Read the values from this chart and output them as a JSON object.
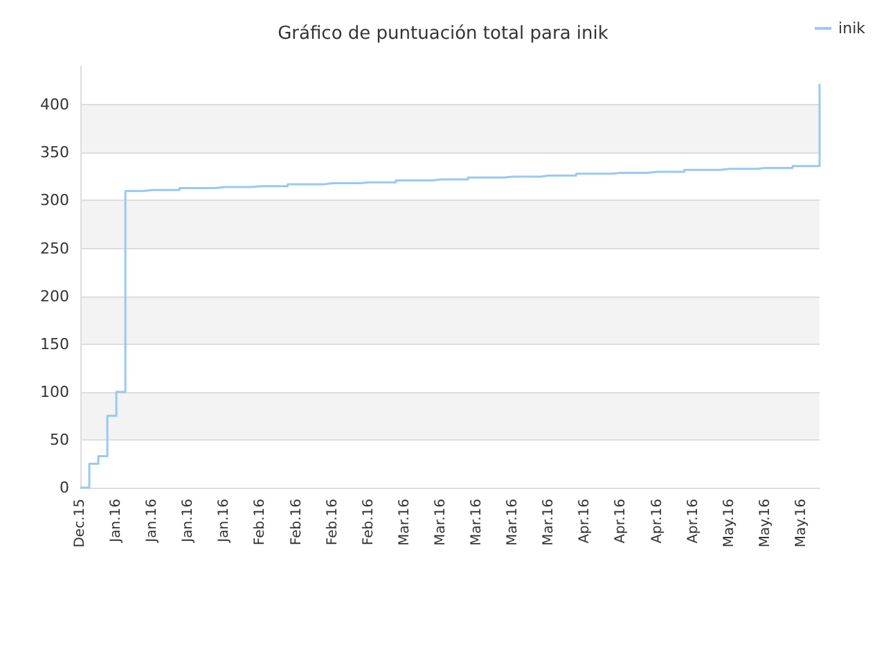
{
  "chart_data": {
    "type": "step",
    "title": "Gráfico de puntuación total para inik",
    "categories": [
      "Dec.15",
      null,
      null,
      null,
      "Jan.16",
      null,
      null,
      null,
      "Jan.16",
      null,
      null,
      null,
      "Jan.16",
      null,
      null,
      null,
      "Jan.16",
      null,
      null,
      null,
      "Feb.16",
      null,
      null,
      null,
      "Feb.16",
      null,
      null,
      null,
      "Feb.16",
      null,
      null,
      null,
      "Feb.16",
      null,
      null,
      null,
      "Mar.16",
      null,
      null,
      null,
      "Mar.16",
      null,
      null,
      null,
      "Mar.16",
      null,
      null,
      null,
      "Mar.16",
      null,
      null,
      null,
      "Mar.16",
      null,
      null,
      null,
      "Apr.16",
      null,
      null,
      null,
      "Apr.16",
      null,
      null,
      null,
      "Apr.16",
      null,
      null,
      null,
      "Apr.16",
      null,
      null,
      null,
      "May.16",
      null,
      null,
      null,
      "May.16",
      null,
      null,
      null,
      "May.16",
      null,
      null
    ],
    "series": [
      {
        "name": "inik",
        "color": "#99c8f5",
        "values": [
          0,
          25,
          33,
          75,
          100,
          310,
          310,
          311,
          311,
          311,
          311,
          313,
          313,
          313,
          313,
          314,
          314,
          314,
          314,
          315,
          315,
          315,
          315,
          317,
          317,
          317,
          317,
          318,
          318,
          318,
          318,
          319,
          319,
          319,
          319,
          321,
          321,
          321,
          321,
          322,
          322,
          322,
          322,
          324,
          324,
          324,
          324,
          325,
          325,
          325,
          325,
          326,
          326,
          326,
          326,
          328,
          328,
          328,
          328,
          329,
          329,
          329,
          329,
          330,
          330,
          330,
          330,
          332,
          332,
          332,
          332,
          333,
          333,
          333,
          333,
          334,
          334,
          334,
          334,
          336,
          336,
          336,
          422
        ]
      }
    ],
    "ylim": [
      0,
      440
    ],
    "yticks": [
      0,
      50,
      100,
      150,
      200,
      250,
      300,
      350,
      400
    ],
    "grid": "y",
    "legend": "top right",
    "marker": "none"
  }
}
